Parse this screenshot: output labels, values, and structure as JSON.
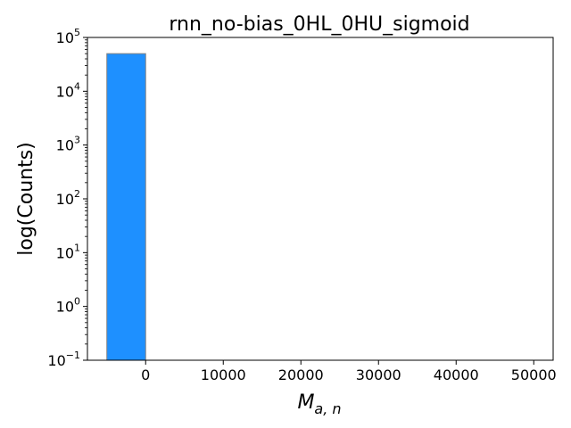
{
  "chart_data": {
    "type": "bar",
    "title": "rnn_no-bias_0HL_0HU_sigmoid",
    "xlabel": "M",
    "xlabel_subscript": "a, n",
    "ylabel": "log(Counts)",
    "yscale": "log",
    "xlim": [
      -7500,
      52500
    ],
    "ylim": [
      0.1,
      100000
    ],
    "x_ticks": [
      0,
      10000,
      20000,
      30000,
      40000,
      50000
    ],
    "y_tick_exponents": [
      -1,
      0,
      1,
      2,
      3,
      4,
      5
    ],
    "y_tick_base": "10",
    "grid": false,
    "legend": "none",
    "bars": [
      {
        "x0": -5000,
        "x1": 0,
        "count": 50000
      }
    ],
    "colors": {
      "bar_fill": "#1e90ff",
      "bar_edge": "#808080",
      "axis": "#000000"
    }
  }
}
